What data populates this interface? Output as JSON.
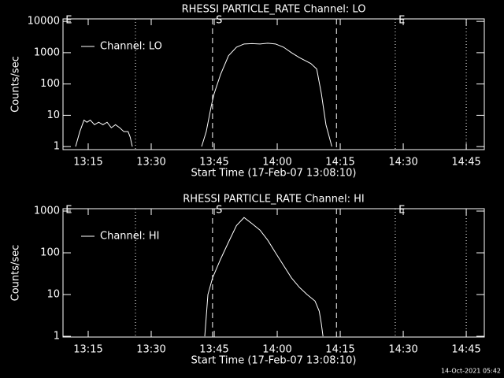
{
  "chart_data": [
    {
      "type": "line",
      "title": "RHESSI PARTICLE_RATE Channel: LO",
      "x_label": "Start Time (17-Feb-07 13:08:10)",
      "y_label": "Counts/sec",
      "log_y": true,
      "legend": "top-left",
      "xlim": [
        789,
        889.3
      ],
      "xticks": [
        {
          "value": 795,
          "label": "13:15"
        },
        {
          "value": 810,
          "label": "13:30"
        },
        {
          "value": 825,
          "label": "13:45"
        },
        {
          "value": 840,
          "label": "14:00"
        },
        {
          "value": 855,
          "label": "14:15"
        },
        {
          "value": 870,
          "label": "14:30"
        },
        {
          "value": 885,
          "label": "14:45"
        }
      ],
      "ylim": [
        0.8,
        12000
      ],
      "yticks": [
        1,
        10,
        100,
        1000,
        10000
      ],
      "x": [
        792,
        793,
        794,
        794.7,
        795.5,
        796.5,
        797.5,
        798.5,
        799.5,
        800.5,
        801.5,
        802.5,
        803.5,
        804.5,
        805,
        805.5,
        813,
        822,
        823.1,
        824.3,
        825,
        826.5,
        828.4,
        830.3,
        832.1,
        834,
        835.9,
        837.75,
        839.6,
        841.5,
        843.4,
        845.25,
        848,
        849.4,
        850.5,
        851.6,
        852.4,
        853
      ],
      "series": [
        {
          "name": "Channel: LO",
          "color": "#ffffff",
          "values": [
            1,
            3,
            7,
            6,
            7,
            5,
            6,
            5,
            6,
            4,
            5,
            4,
            3,
            3,
            2,
            1,
            null,
            1,
            3,
            20,
            50,
            200,
            800,
            1500,
            1900,
            1950,
            1900,
            2000,
            1900,
            1500,
            1000,
            700,
            450,
            300,
            50,
            5,
            2,
            1
          ]
        }
      ],
      "vlines": [
        {
          "x": 806.25,
          "style": "dotted"
        },
        {
          "x": 824.6,
          "style": "dashed"
        },
        {
          "x": 854.1,
          "style": "dashed"
        },
        {
          "x": 868.1,
          "style": "dotted"
        },
        {
          "x": 885,
          "style": "dotted"
        }
      ],
      "annotations": [
        {
          "x": 789.6,
          "text": "E"
        },
        {
          "x": 825.4,
          "text": "S"
        },
        {
          "x": 868.9,
          "text": "E"
        }
      ]
    },
    {
      "type": "line",
      "title": "RHESSI PARTICLE_RATE Channel: HI",
      "x_label": "Start Time (17-Feb-07 13:08:10)",
      "y_label": "Counts/sec",
      "log_y": true,
      "legend": "top-left",
      "xlim": [
        789,
        889.3
      ],
      "xticks": [
        {
          "value": 795,
          "label": "13:15"
        },
        {
          "value": 810,
          "label": "13:30"
        },
        {
          "value": 825,
          "label": "13:45"
        },
        {
          "value": 840,
          "label": "14:00"
        },
        {
          "value": 855,
          "label": "14:15"
        },
        {
          "value": 870,
          "label": "14:30"
        },
        {
          "value": 885,
          "label": "14:45"
        }
      ],
      "ylim": [
        0.96,
        1140
      ],
      "yticks": [
        1,
        10,
        100,
        1000
      ],
      "x": [
        822.75,
        823.5,
        824.6,
        826.5,
        828.4,
        830.3,
        832.1,
        834,
        835.9,
        837.75,
        839.6,
        841.5,
        843.4,
        845.25,
        847.1,
        849,
        850,
        850.5,
        850.9
      ],
      "series": [
        {
          "name": "Channel: HI",
          "color": "#ffffff",
          "values": [
            1,
            10,
            25,
            70,
            180,
            450,
            700,
            500,
            350,
            200,
            100,
            50,
            25,
            15,
            10,
            7,
            4,
            2,
            1
          ]
        }
      ],
      "vlines": [
        {
          "x": 806.25,
          "style": "dotted"
        },
        {
          "x": 824.6,
          "style": "dashed"
        },
        {
          "x": 854.1,
          "style": "dashed"
        },
        {
          "x": 868.1,
          "style": "dotted"
        },
        {
          "x": 885,
          "style": "dotted"
        }
      ],
      "annotations": [
        {
          "x": 789.6,
          "text": "E"
        },
        {
          "x": 825.4,
          "text": "S"
        },
        {
          "x": 868.9,
          "text": "E"
        }
      ]
    }
  ],
  "footer": "14-Oct-2021 05:42"
}
